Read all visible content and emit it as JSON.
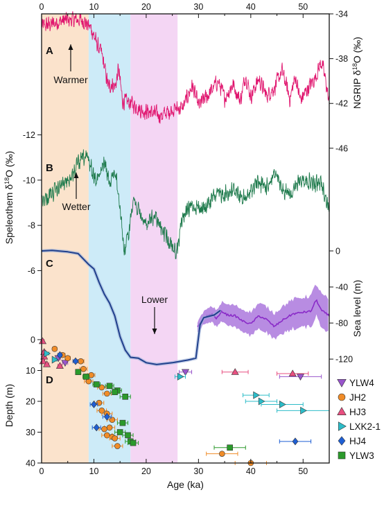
{
  "chart_data": {
    "type": "line",
    "x": {
      "label": "Age (ka)",
      "range": [
        0,
        55
      ],
      "ticks": [
        0,
        10,
        20,
        30,
        40,
        50
      ],
      "shown_top_and_bottom": true
    },
    "shaded_intervals": [
      {
        "from": 0,
        "to": 9,
        "color": "#fbe3cc"
      },
      {
        "from": 9,
        "to": 17,
        "color": "#cdebf8"
      },
      {
        "from": 17,
        "to": 26,
        "color": "#f4d6f4"
      }
    ],
    "panels": [
      {
        "letter": "A",
        "series_name": "NGRIP δ18O",
        "axis_side": "right",
        "axis_label": "NGRIP δ18O (‰)",
        "axis_label_parts": [
          "NGRIP δ",
          "18",
          "O (‰)"
        ],
        "ylim": [
          -47,
          -34
        ],
        "ticks": [
          -34,
          -38,
          -42,
          -46
        ],
        "color": "#e0156e",
        "annotation": {
          "text": "Warmer",
          "at_x": 8.5,
          "arrow": "up"
        },
        "anchors": [
          [
            0,
            -35.1
          ],
          [
            2,
            -34.9
          ],
          [
            4,
            -34.6
          ],
          [
            6,
            -34.5
          ],
          [
            8,
            -34.6
          ],
          [
            9.5,
            -35.3
          ],
          [
            10.5,
            -36.6
          ],
          [
            11.5,
            -37.6
          ],
          [
            12.2,
            -39.2
          ],
          [
            12.8,
            -40.6
          ],
          [
            13.4,
            -40.2
          ],
          [
            14.1,
            -40.5
          ],
          [
            14.7,
            -38.9
          ],
          [
            15.5,
            -41.8
          ],
          [
            17,
            -41.9
          ],
          [
            19,
            -42.6
          ],
          [
            21,
            -42.8
          ],
          [
            23,
            -43.1
          ],
          [
            25,
            -42.5
          ],
          [
            27,
            -42.4
          ],
          [
            28.8,
            -40.4
          ],
          [
            30,
            -42.2
          ],
          [
            32,
            -41.2
          ],
          [
            33.7,
            -40.0
          ],
          [
            35,
            -41.5
          ],
          [
            36.6,
            -40.3
          ],
          [
            38,
            -41.8
          ],
          [
            39,
            -39.4
          ],
          [
            40,
            -41.4
          ],
          [
            41.5,
            -39.8
          ],
          [
            43,
            -41.3
          ],
          [
            44.5,
            -40.6
          ],
          [
            46,
            -39.1
          ],
          [
            47.5,
            -41.6
          ],
          [
            48.5,
            -39.6
          ],
          [
            49.5,
            -41.7
          ],
          [
            51,
            -40.6
          ],
          [
            52.3,
            -39.7
          ],
          [
            53.5,
            -38.3
          ],
          [
            54.3,
            -39.9
          ],
          [
            55,
            -42.1
          ]
        ]
      },
      {
        "letter": "B",
        "series_name": "Speleothem δ18O",
        "axis_side": "left",
        "axis_label": "Speleothem δ18O (‰)",
        "axis_label_parts": [
          "Speleothem δ",
          "18",
          "O (‰)"
        ],
        "ylim": [
          -5.4,
          -12.6
        ],
        "ticks": [
          -6,
          -8,
          -10,
          -12
        ],
        "color": "#1e7a4c",
        "annotation": {
          "text": "Wetter",
          "at_x": 8.5,
          "arrow": "up"
        },
        "anchors": [
          [
            0,
            -9.1
          ],
          [
            2,
            -9.4
          ],
          [
            4,
            -9.8
          ],
          [
            5.5,
            -10.1
          ],
          [
            7,
            -10.7
          ],
          [
            8,
            -11.0
          ],
          [
            9,
            -10.9
          ],
          [
            10,
            -10.2
          ],
          [
            11,
            -10.1
          ],
          [
            12,
            -10.8
          ],
          [
            13,
            -9.8
          ],
          [
            14,
            -10.5
          ],
          [
            15,
            -8.9
          ],
          [
            15.8,
            -6.8
          ],
          [
            16.7,
            -7.7
          ],
          [
            17.5,
            -9.3
          ],
          [
            18.5,
            -8.6
          ],
          [
            20,
            -8.0
          ],
          [
            21.5,
            -8.4
          ],
          [
            23,
            -7.8
          ],
          [
            25,
            -7.1
          ],
          [
            25.8,
            -6.8
          ],
          [
            27,
            -8.4
          ],
          [
            29,
            -8.9
          ],
          [
            31,
            -8.7
          ],
          [
            33,
            -9.3
          ],
          [
            35,
            -9.4
          ],
          [
            37,
            -9.6
          ],
          [
            39,
            -9.1
          ],
          [
            41,
            -9.9
          ],
          [
            43,
            -9.7
          ],
          [
            44.5,
            -10.3
          ],
          [
            46,
            -9.5
          ],
          [
            48,
            -9.5
          ],
          [
            50,
            -10.1
          ],
          [
            52,
            -9.8
          ],
          [
            53.5,
            -9.9
          ],
          [
            55,
            -8.7
          ]
        ]
      },
      {
        "letter": "C",
        "series_name": "Sea level",
        "axis_side": "right",
        "axis_label": "Sea level (m)",
        "ylim": [
          -133,
          0
        ],
        "ticks": [
          0,
          -40,
          -80,
          -120
        ],
        "color": "#1f3f8c",
        "band_color": "#a066d8",
        "extra_line_color": "#8a2bc8",
        "annotation": {
          "text": "Lower",
          "at_x": 21,
          "arrow": "down"
        },
        "anchors": [
          [
            0,
            0
          ],
          [
            2,
            0.5
          ],
          [
            5,
            -1
          ],
          [
            7,
            -3
          ],
          [
            9,
            -15
          ],
          [
            10,
            -20
          ],
          [
            11,
            -35
          ],
          [
            12,
            -48
          ],
          [
            13,
            -58
          ],
          [
            14,
            -72
          ],
          [
            15,
            -95
          ],
          [
            16,
            -110
          ],
          [
            17,
            -118
          ],
          [
            18.5,
            -119
          ],
          [
            20,
            -124
          ],
          [
            22,
            -126
          ],
          [
            25,
            -124
          ],
          [
            28,
            -121
          ],
          [
            29.5,
            -119
          ],
          [
            30.3,
            -82
          ],
          [
            31,
            -74
          ],
          [
            33,
            -71
          ],
          [
            34.2,
            -66
          ]
        ],
        "extra_anchors": [
          [
            29.8,
            -85
          ],
          [
            31,
            -74
          ],
          [
            32.5,
            -70
          ],
          [
            33.5,
            -75
          ],
          [
            34.5,
            -67
          ],
          [
            35.5,
            -71
          ],
          [
            37,
            -72
          ],
          [
            38.5,
            -78
          ],
          [
            40,
            -81
          ],
          [
            41.5,
            -72
          ],
          [
            43,
            -76
          ],
          [
            44.5,
            -84
          ],
          [
            46,
            -77
          ],
          [
            48,
            -70
          ],
          [
            50,
            -68
          ],
          [
            51.5,
            -67
          ],
          [
            52.5,
            -54
          ],
          [
            53.5,
            -66
          ],
          [
            55,
            -72
          ]
        ],
        "extra_band_halfwidth": [
          [
            29.8,
            6
          ],
          [
            31,
            7
          ],
          [
            33,
            9
          ],
          [
            35,
            11
          ],
          [
            37,
            12
          ],
          [
            39,
            13
          ],
          [
            42,
            14
          ],
          [
            45,
            15
          ],
          [
            48,
            16
          ],
          [
            51,
            17
          ],
          [
            53,
            18
          ],
          [
            55,
            18
          ]
        ]
      },
      {
        "letter": "D",
        "axis_side": "left",
        "axis_label": "Depth (m)",
        "ylim": [
          40,
          0
        ],
        "ticks": [
          0,
          10,
          20,
          30,
          40
        ],
        "scatter": [
          {
            "name": "YLW4",
            "shape": "triangle-down",
            "color": "#9955cc",
            "points": [
              [
                3.2,
                6.0,
                0.4
              ],
              [
                4.5,
                7.5,
                0.5
              ],
              [
                27.5,
                10.5,
                1.2
              ],
              [
                49.5,
                12.0,
                4.0
              ]
            ]
          },
          {
            "name": "JH2",
            "shape": "circle",
            "color": "#f08c28",
            "points": [
              [
                2.5,
                3.0,
                0.4
              ],
              [
                4.0,
                5.0,
                0.5
              ],
              [
                5.0,
                6.0,
                0.5
              ],
              [
                7.5,
                7.0,
                0.6
              ],
              [
                8.0,
                9.5,
                0.7
              ],
              [
                9.5,
                11.5,
                0.7
              ],
              [
                9.0,
                13.5,
                0.8
              ],
              [
                11.5,
                15.5,
                0.8
              ],
              [
                12.5,
                17.5,
                0.8
              ],
              [
                11.0,
                20.5,
                0.9
              ],
              [
                11.5,
                23.0,
                0.9
              ],
              [
                12.5,
                24.0,
                1.0
              ],
              [
                13.5,
                26.0,
                1.0
              ],
              [
                13.0,
                28.5,
                1.0
              ],
              [
                12.0,
                29.0,
                1.0
              ],
              [
                12.5,
                31.0,
                1.0
              ],
              [
                13.5,
                31.5,
                1.0
              ],
              [
                14.0,
                32.0,
                1.0
              ],
              [
                14.5,
                34.5,
                1.0
              ],
              [
                34.5,
                37.0,
                3.0
              ],
              [
                40.0,
                40.0,
                3.0
              ]
            ]
          },
          {
            "name": "HJ3",
            "shape": "triangle-up",
            "color": "#e84f80",
            "points": [
              [
                0.2,
                0.5,
                0.3
              ],
              [
                0.5,
                4.0,
                0.3
              ],
              [
                0.5,
                5.5,
                0.3
              ],
              [
                0.3,
                7.0,
                0.3
              ],
              [
                1.0,
                8.0,
                0.4
              ],
              [
                3.5,
                8.5,
                0.4
              ],
              [
                37.0,
                10.5,
                2.5
              ],
              [
                48.0,
                11.0,
                3.0
              ]
            ]
          },
          {
            "name": "LXK2-1",
            "shape": "triangle-right",
            "color": "#2cbcc8",
            "points": [
              [
                1.0,
                4.5,
                0.4
              ],
              [
                2.5,
                6.5,
                0.4
              ],
              [
                26.5,
                12.0,
                1.0
              ],
              [
                41.0,
                18.0,
                2.5
              ],
              [
                42.0,
                20.0,
                3.0
              ],
              [
                46.0,
                21.0,
                4.0
              ],
              [
                50.0,
                23.0,
                5.0
              ]
            ]
          },
          {
            "name": "HJ4",
            "shape": "diamond",
            "color": "#1f5fd4",
            "points": [
              [
                3.5,
                5.0,
                0.4
              ],
              [
                6.5,
                7.0,
                0.5
              ],
              [
                10.0,
                21.0,
                0.7
              ],
              [
                12.5,
                25.0,
                0.8
              ],
              [
                10.5,
                28.5,
                0.8
              ],
              [
                48.5,
                33.0,
                3.0
              ]
            ]
          },
          {
            "name": "YLW3",
            "shape": "square",
            "color": "#2b9a2b",
            "points": [
              [
                7.0,
                10.5,
                0.5
              ],
              [
                8.5,
                12.0,
                0.6
              ],
              [
                10.5,
                14.5,
                0.7
              ],
              [
                13.0,
                15.0,
                0.8
              ],
              [
                14.5,
                16.5,
                0.8
              ],
              [
                14.0,
                17.0,
                0.8
              ],
              [
                16.0,
                18.5,
                1.0
              ],
              [
                15.5,
                27.0,
                1.0
              ],
              [
                15.0,
                30.0,
                1.0
              ],
              [
                16.5,
                31.0,
                1.0
              ],
              [
                17.0,
                33.0,
                1.0
              ],
              [
                17.5,
                33.5,
                1.0
              ],
              [
                36.0,
                35.0,
                3.0
              ]
            ]
          }
        ]
      }
    ]
  }
}
